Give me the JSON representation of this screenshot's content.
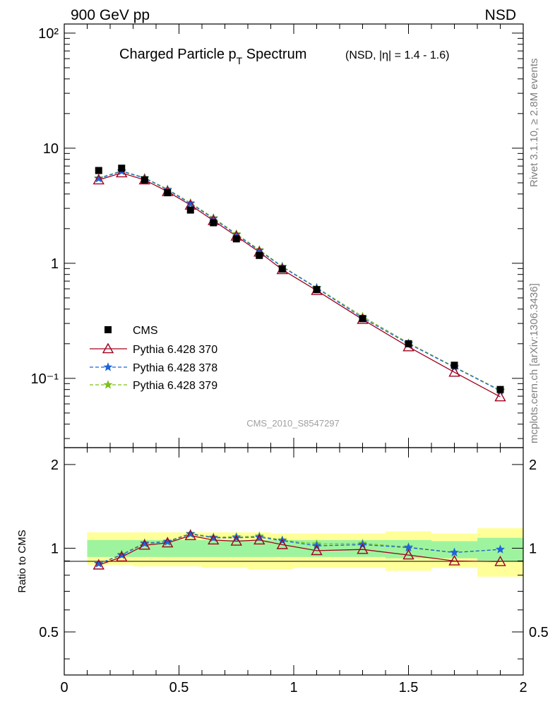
{
  "header": {
    "left": "900 GeV pp",
    "right": "NSD"
  },
  "side_text": {
    "upper": "Rivet 3.1.10, ≥ 2.8M events",
    "lower": "mcplots.cern.ch [arXiv:1306.3436]"
  },
  "chart_data": [
    {
      "type": "scatter",
      "title": "Charged Particle p",
      "title_sub": "T",
      "title_tail": " Spectrum",
      "title_small": "(NSD, |η| = 1.4 - 1.6)",
      "watermark": "CMS_2010_S8547297",
      "xlim": [
        0,
        2
      ],
      "ylim": [
        0.025,
        120
      ],
      "yscale": "log",
      "y_tick_labels": [
        "10²",
        "10",
        "1",
        "10⁻¹"
      ],
      "legend_position": "lower-left",
      "series": [
        {
          "name": "CMS",
          "color": "#000000",
          "marker": "square",
          "x": [
            0.15,
            0.25,
            0.35,
            0.45,
            0.55,
            0.65,
            0.75,
            0.85,
            0.95,
            1.1,
            1.3,
            1.5,
            1.7,
            1.9
          ],
          "y": [
            6.4,
            6.7,
            5.3,
            4.1,
            2.9,
            2.25,
            1.63,
            1.17,
            0.89,
            0.59,
            0.33,
            0.2,
            0.13,
            0.08
          ]
        },
        {
          "name": "Pythia 6.428 370",
          "color": "#a0001e",
          "marker": "triangle-open",
          "line": "solid",
          "x": [
            0.15,
            0.25,
            0.35,
            0.45,
            0.55,
            0.65,
            0.75,
            0.85,
            0.95,
            1.1,
            1.3,
            1.5,
            1.7,
            1.9
          ],
          "y": [
            5.3,
            6.1,
            5.3,
            4.2,
            3.2,
            2.35,
            1.72,
            1.25,
            0.88,
            0.58,
            0.325,
            0.188,
            0.113,
            0.069
          ]
        },
        {
          "name": "Pythia 6.428 378",
          "color": "#1e64dc",
          "marker": "star",
          "line": "dashed",
          "x": [
            0.15,
            0.25,
            0.35,
            0.45,
            0.55,
            0.65,
            0.75,
            0.85,
            0.95,
            1.1,
            1.3,
            1.5,
            1.7,
            1.9
          ],
          "y": [
            5.45,
            6.3,
            5.5,
            4.35,
            3.3,
            2.45,
            1.77,
            1.29,
            0.93,
            0.61,
            0.335,
            0.2,
            0.125,
            0.078
          ]
        },
        {
          "name": "Pythia 6.428 379",
          "color": "#7fbf1f",
          "marker": "star",
          "line": "dashed",
          "x": [
            0.15,
            0.25,
            0.35,
            0.45,
            0.55,
            0.65,
            0.75,
            0.85,
            0.95,
            1.1,
            1.3,
            1.5,
            1.7,
            1.9
          ],
          "y": [
            5.5,
            6.35,
            5.55,
            4.4,
            3.35,
            2.48,
            1.8,
            1.31,
            0.94,
            0.615,
            0.345,
            0.203,
            0.126,
            0.079
          ]
        }
      ]
    },
    {
      "type": "scatter",
      "ylabel": "Ratio to CMS",
      "xlim": [
        0,
        2
      ],
      "ylim": [
        0.35,
        2.3
      ],
      "x_tick_labels": [
        "0",
        "0.5",
        "1",
        "1.5",
        "2"
      ],
      "y_tick_labels": [
        "0.5",
        "1",
        "2"
      ],
      "reference_line": 1,
      "bands": {
        "x_edges": [
          0.1,
          0.2,
          0.3,
          0.4,
          0.5,
          0.6,
          0.7,
          0.8,
          0.9,
          1.0,
          1.2,
          1.4,
          1.6,
          1.8,
          2.0
        ],
        "inner": [
          [
            0.93,
            1.07
          ],
          [
            0.93,
            1.07
          ],
          [
            0.93,
            1.07
          ],
          [
            0.93,
            1.07
          ],
          [
            0.93,
            1.07
          ],
          [
            0.93,
            1.07
          ],
          [
            0.93,
            1.07
          ],
          [
            0.93,
            1.07
          ],
          [
            0.93,
            1.07
          ],
          [
            0.93,
            1.07
          ],
          [
            0.93,
            1.07
          ],
          [
            0.92,
            1.07
          ],
          [
            0.92,
            1.06
          ],
          [
            0.9,
            1.09
          ]
        ],
        "outer": [
          [
            0.87,
            1.14
          ],
          [
            0.87,
            1.14
          ],
          [
            0.86,
            1.14
          ],
          [
            0.86,
            1.14
          ],
          [
            0.86,
            1.14
          ],
          [
            0.85,
            1.14
          ],
          [
            0.85,
            1.14
          ],
          [
            0.84,
            1.14
          ],
          [
            0.84,
            1.13
          ],
          [
            0.85,
            1.13
          ],
          [
            0.85,
            1.13
          ],
          [
            0.83,
            1.15
          ],
          [
            0.85,
            1.13
          ],
          [
            0.79,
            1.18
          ]
        ],
        "inner_color": "#9ef49e",
        "outer_color": "#ffff99"
      },
      "series": [
        {
          "name": "Pythia 6.428 370",
          "color": "#a0001e",
          "marker": "triangle-open",
          "line": "solid",
          "x": [
            0.15,
            0.25,
            0.35,
            0.45,
            0.55,
            0.65,
            0.75,
            0.85,
            0.95,
            1.1,
            1.3,
            1.5,
            1.7,
            1.9
          ],
          "y": [
            0.87,
            0.93,
            1.025,
            1.045,
            1.11,
            1.07,
            1.06,
            1.07,
            1.03,
            0.98,
            0.99,
            0.945,
            0.9,
            0.895
          ]
        },
        {
          "name": "Pythia 6.428 378",
          "color": "#1e64dc",
          "marker": "star",
          "line": "dashed",
          "x": [
            0.15,
            0.25,
            0.35,
            0.45,
            0.55,
            0.65,
            0.75,
            0.85,
            0.95,
            1.1,
            1.3,
            1.5,
            1.7,
            1.9
          ],
          "y": [
            0.88,
            0.945,
            1.04,
            1.055,
            1.125,
            1.09,
            1.09,
            1.095,
            1.065,
            1.02,
            1.03,
            1.005,
            0.965,
            0.99
          ]
        },
        {
          "name": "Pythia 6.428 379",
          "color": "#7fbf1f",
          "marker": "star",
          "line": "dashed",
          "x": [
            0.15,
            0.25,
            0.35,
            0.45,
            0.55,
            0.65,
            0.75,
            0.85,
            0.95,
            1.1,
            1.3,
            1.5,
            1.7,
            1.9
          ],
          "y": [
            0.88,
            0.95,
            1.045,
            1.06,
            1.13,
            1.095,
            1.1,
            1.105,
            1.07,
            1.035,
            1.04,
            1.01,
            0.965,
            0.99
          ]
        }
      ]
    }
  ]
}
